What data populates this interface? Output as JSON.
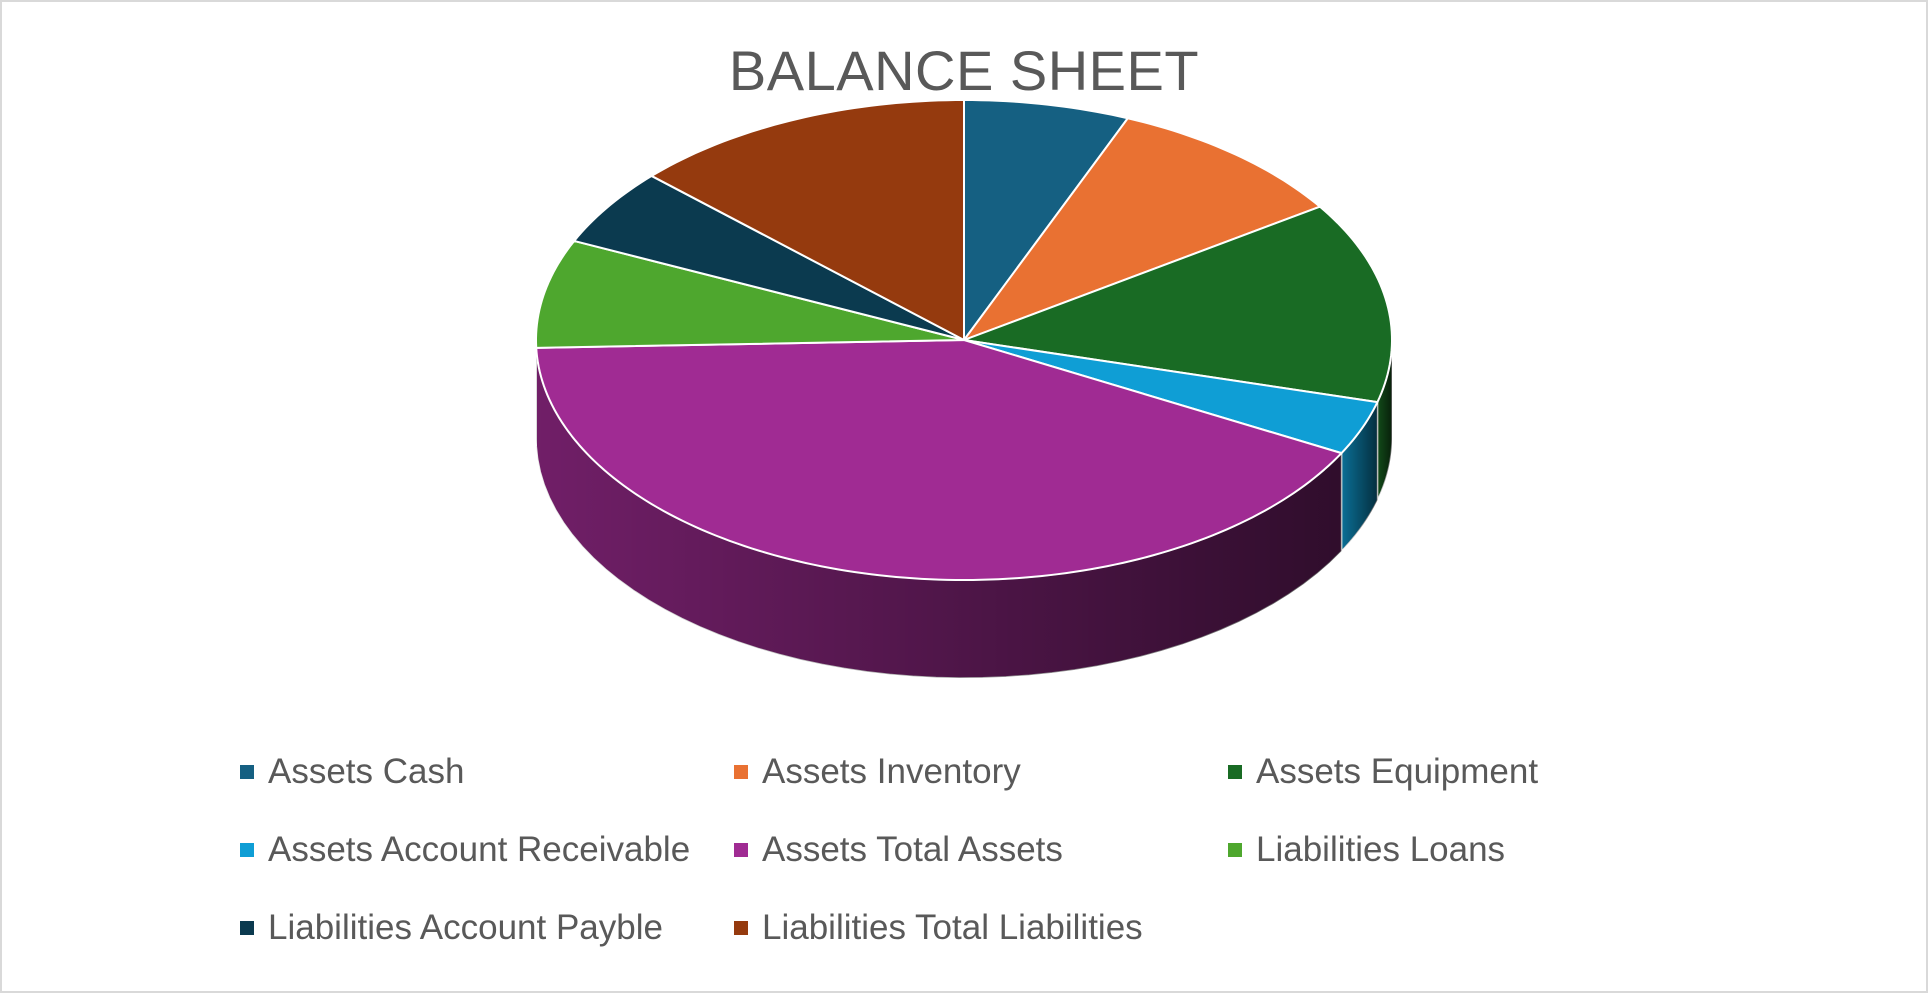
{
  "chart_data": {
    "type": "pie",
    "title": "BALANCE SHEET",
    "legend_position": "bottom",
    "three_d": true,
    "slices": [
      {
        "label": "Assets Cash",
        "value": 6,
        "color": "#156082"
      },
      {
        "label": "Assets Inventory",
        "value": 9,
        "color": "#E97132"
      },
      {
        "label": "Assets Equipment",
        "value": 13,
        "color": "#196B24"
      },
      {
        "label": "Assets Account Receivable",
        "value": 3.5,
        "color": "#0F9ED5"
      },
      {
        "label": "Assets Total Assets",
        "value": 40,
        "color": "#A02B93"
      },
      {
        "label": "Liabilities Loans",
        "value": 7,
        "color": "#4EA72E"
      },
      {
        "label": "Liabilities Account Payble",
        "value": 5,
        "color": "#0B3A4F"
      },
      {
        "label": "Liabilities Total Liabilities",
        "value": 12.5,
        "color": "#953A0E"
      }
    ]
  }
}
